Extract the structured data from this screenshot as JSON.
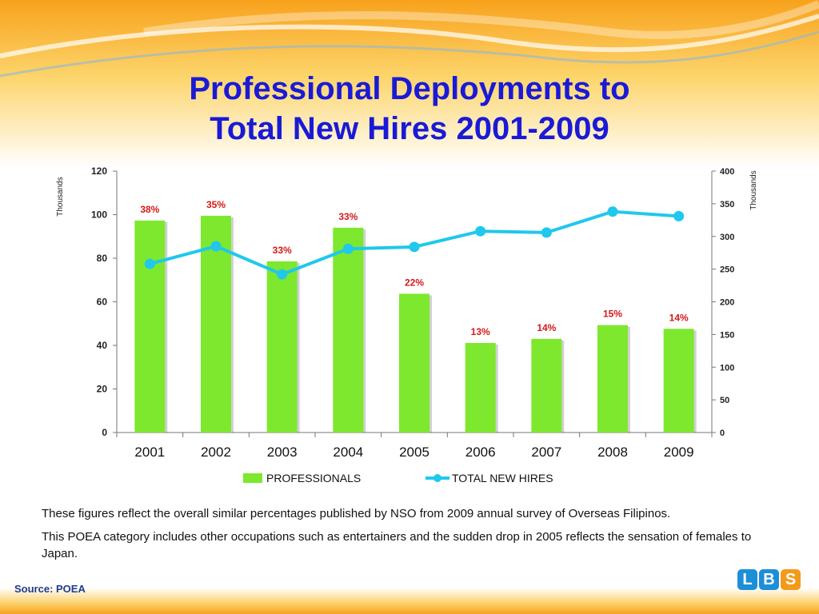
{
  "title_line1": "Professional Deployments to",
  "title_line2": "Total New Hires 2001-2009",
  "chart_data": {
    "type": "bar",
    "categories": [
      "2001",
      "2002",
      "2003",
      "2004",
      "2005",
      "2006",
      "2007",
      "2008",
      "2009"
    ],
    "series": [
      {
        "name": "PROFESSIONALS",
        "type": "bar",
        "axis": "left",
        "values": [
          97.3,
          99.5,
          78.6,
          94.0,
          63.7,
          41.1,
          43.0,
          49.3,
          47.6
        ],
        "color": "#7ee82e"
      },
      {
        "name": "TOTAL NEW HIRES",
        "type": "line",
        "axis": "right",
        "values": [
          258,
          285,
          242,
          281,
          284,
          308,
          306,
          338,
          331
        ],
        "color": "#1fc8ec"
      }
    ],
    "bar_labels": [
      "38%",
      "35%",
      "33%",
      "33%",
      "22%",
      "13%",
      "14%",
      "15%",
      "14%"
    ],
    "ylabel": "Thousands",
    "y2label": "Thousands",
    "ylim": [
      0,
      120
    ],
    "y2lim": [
      0,
      400
    ],
    "yticks": [
      0,
      20,
      40,
      60,
      80,
      100,
      120
    ],
    "y2ticks": [
      0,
      50,
      100,
      150,
      200,
      250,
      300,
      350,
      400
    ],
    "legend_position": "bottom",
    "grid": false
  },
  "notes": [
    "These figures reflect the overall similar percentages published by NSO from 2009 annual survey of Overseas Filipinos.",
    "This POEA category includes other occupations such as entertainers and the sudden drop in 2005 reflects the sensation of females to Japan."
  ],
  "source": "Source: POEA",
  "logo": {
    "letters": [
      "L",
      "B",
      "S"
    ],
    "colors": [
      "#1d8fd6",
      "#1d8fd6",
      "#f39a1b"
    ]
  }
}
